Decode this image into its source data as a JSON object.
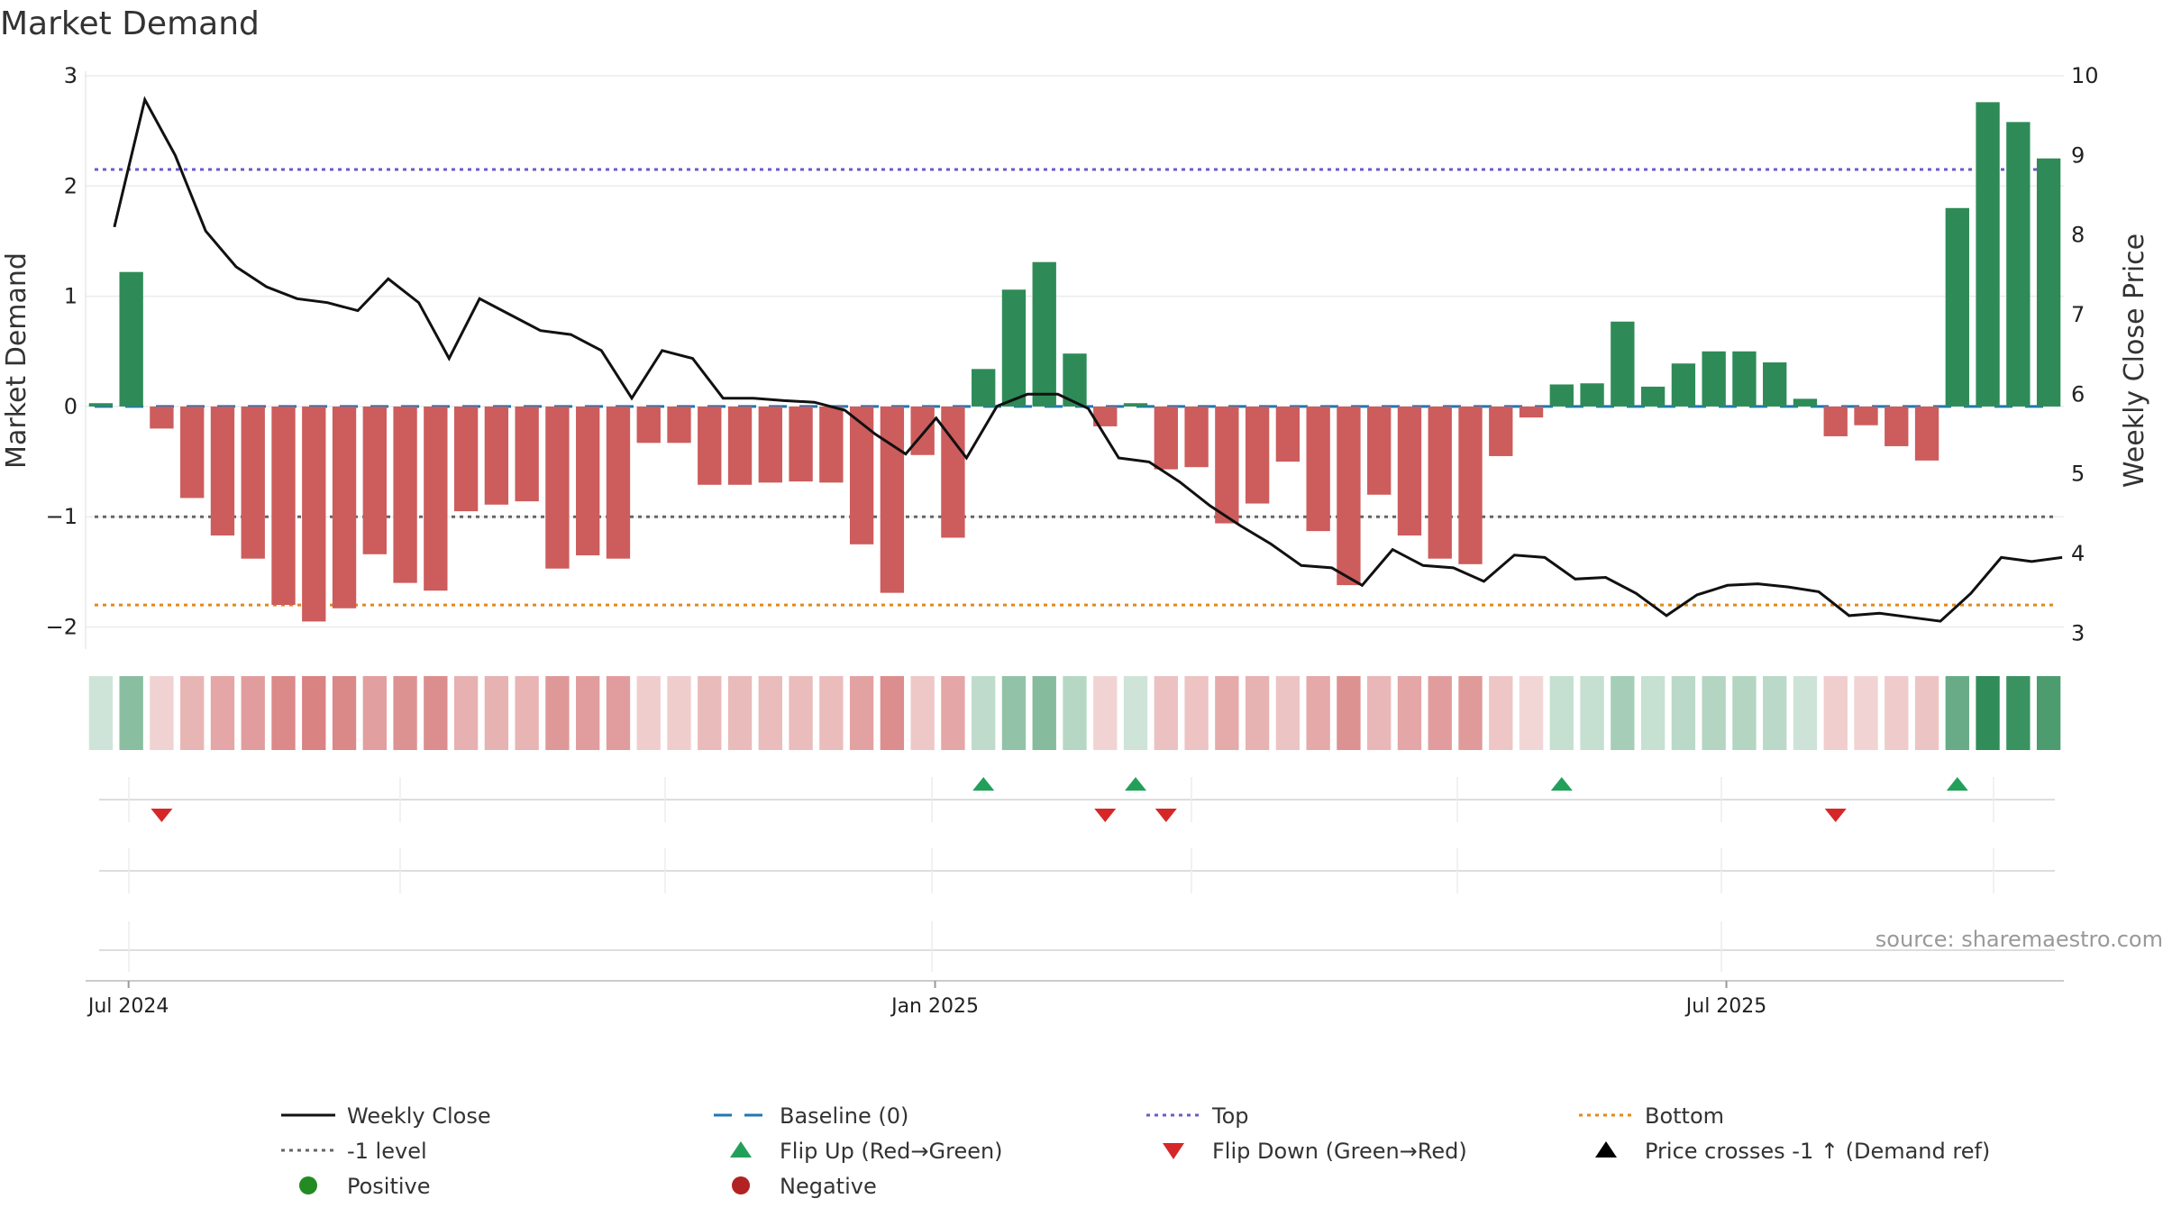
{
  "chart_data": {
    "type": "bar",
    "title": "Market Demand",
    "ylabel": "Market Demand",
    "y2label": "Weekly Close Price",
    "ylim": [
      -2.2,
      3.0
    ],
    "y2lim": [
      2.8,
      10.0
    ],
    "yticks": [
      3,
      2,
      1,
      0,
      -1,
      -2
    ],
    "y2ticks": [
      10,
      9,
      8,
      7,
      6,
      5,
      4,
      3
    ],
    "x_ticks": [
      {
        "index": 1,
        "label": "Jul 2024"
      },
      {
        "index": 27.5,
        "label": "Jan 2025"
      },
      {
        "index": 53.5,
        "label": "Jul 2025"
      }
    ],
    "reference_lines": {
      "top": 2.15,
      "baseline": 0,
      "minus_one": -1,
      "bottom": -1.8
    },
    "colors": {
      "positive_bar": "#2e8b57",
      "negative_bar": "#cd5c5c",
      "close_line": "#111111",
      "baseline": "#1f77b4",
      "top": "#6a5acd",
      "bottom": "#e08a1e",
      "minus_one": "#666666",
      "flip_up": "#22a05a",
      "flip_down": "#d62728",
      "positive_dot": "#228b22",
      "negative_dot": "#b22222"
    },
    "series": [
      {
        "name": "Market Demand",
        "values": [
          0.03,
          1.22,
          -0.2,
          -0.83,
          -1.17,
          -1.38,
          -1.8,
          -1.95,
          -1.83,
          -1.34,
          -1.6,
          -1.67,
          -0.95,
          -0.89,
          -0.86,
          -1.47,
          -1.35,
          -1.38,
          -0.33,
          -0.33,
          -0.71,
          -0.71,
          -0.69,
          -0.68,
          -0.69,
          -1.25,
          -1.69,
          -0.44,
          -1.19,
          0.34,
          1.06,
          1.31,
          0.48,
          -0.18,
          0.03,
          -0.57,
          -0.55,
          -1.06,
          -0.88,
          -0.5,
          -1.13,
          -1.62,
          -0.8,
          -1.17,
          -1.38,
          -1.43,
          -0.45,
          -0.1,
          0.2,
          0.21,
          0.77,
          0.18,
          0.39,
          0.5,
          0.5,
          0.4,
          0.07,
          -0.27,
          -0.17,
          -0.36,
          -0.49,
          1.8,
          2.76,
          2.58,
          2.25
        ]
      },
      {
        "name": "Weekly Close",
        "values": [
          8.1,
          9.7,
          9.0,
          8.05,
          7.6,
          7.35,
          7.2,
          7.15,
          7.05,
          7.45,
          7.15,
          6.45,
          7.2,
          7.0,
          6.8,
          6.75,
          6.55,
          5.95,
          6.55,
          6.45,
          5.95,
          5.95,
          5.92,
          5.9,
          5.8,
          5.5,
          5.25,
          5.7,
          5.2,
          5.85,
          6.0,
          6.0,
          5.82,
          5.2,
          5.15,
          4.9,
          4.6,
          4.35,
          4.12,
          3.85,
          3.82,
          3.6,
          4.05,
          3.85,
          3.82,
          3.65,
          3.98,
          3.95,
          3.68,
          3.7,
          3.5,
          3.22,
          3.48,
          3.6,
          3.62,
          3.58,
          3.52,
          3.22,
          3.25,
          3.2,
          3.15,
          3.5,
          3.95,
          3.9,
          3.95
        ]
      }
    ],
    "flip_up_indices": [
      29,
      34,
      48,
      61
    ],
    "flip_down_indices": [
      2,
      33,
      35,
      57
    ],
    "source": "source: sharemaestro.com",
    "legend": [
      {
        "label": "Weekly Close",
        "kind": "solid-line",
        "color": "#111111"
      },
      {
        "label": "Baseline (0)",
        "kind": "dash-line",
        "color": "#1f77b4"
      },
      {
        "label": "Top",
        "kind": "dot-line",
        "color": "#6a5acd"
      },
      {
        "label": "Bottom",
        "kind": "dot-line",
        "color": "#e08a1e"
      },
      {
        "label": "-1 level",
        "kind": "dot-line",
        "color": "#666666"
      },
      {
        "label": "Flip Up (Red→Green)",
        "kind": "tri-up",
        "color": "#22a05a"
      },
      {
        "label": "Flip Down (Green→Red)",
        "kind": "tri-down",
        "color": "#d62728"
      },
      {
        "label": "Price crosses -1 ↑ (Demand ref)",
        "kind": "tri-up",
        "color": "#000000"
      },
      {
        "label": "Positive",
        "kind": "dot",
        "color": "#228b22"
      },
      {
        "label": "Negative",
        "kind": "dot",
        "color": "#b22222"
      }
    ]
  }
}
